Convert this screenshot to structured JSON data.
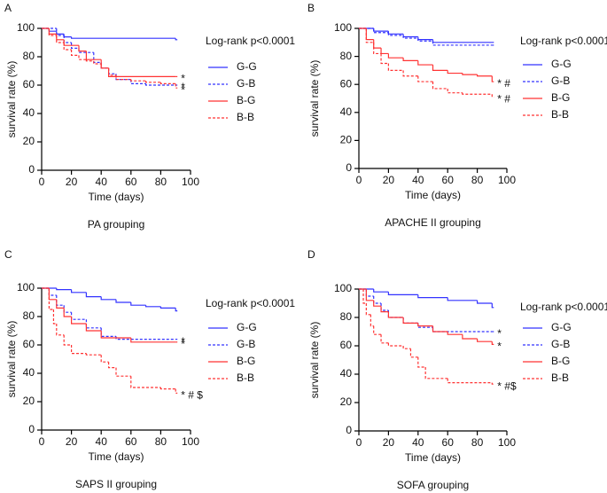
{
  "chart_data": [
    {
      "type": "line",
      "step": true,
      "panel": "A",
      "title": "PA grouping",
      "x_label": "Time (days)",
      "y_label": "survival rate (%)",
      "annotation": "Log-rank p<0.0001",
      "xlim": [
        0,
        100
      ],
      "xticks": [
        0,
        20,
        40,
        60,
        80,
        100
      ],
      "ylim": [
        0,
        100
      ],
      "yticks": [
        0,
        20,
        40,
        60,
        80,
        100
      ],
      "series": [
        {
          "name": "G-G",
          "color": "#3333ff",
          "dash": "solid",
          "x": [
            0,
            5,
            10,
            15,
            20,
            90
          ],
          "values": [
            100,
            98,
            96,
            94,
            93,
            92
          ]
        },
        {
          "name": "G-B",
          "color": "#3333ff",
          "dash": "dashed",
          "x": [
            0,
            10,
            15,
            20,
            25,
            35,
            40,
            45,
            50,
            60,
            70,
            90
          ],
          "values": [
            100,
            95,
            90,
            86,
            83,
            76,
            72,
            68,
            64,
            61,
            60,
            60
          ],
          "end_label": "*"
        },
        {
          "name": "B-G",
          "color": "#ff3333",
          "dash": "solid",
          "x": [
            0,
            5,
            10,
            15,
            25,
            30,
            40,
            45,
            90
          ],
          "values": [
            100,
            96,
            92,
            88,
            84,
            78,
            72,
            66,
            66
          ],
          "end_label": "*"
        },
        {
          "name": "B-B",
          "color": "#ff3333",
          "dash": "dashed",
          "x": [
            0,
            5,
            10,
            15,
            20,
            25,
            30,
            35,
            40,
            45,
            50,
            60,
            70,
            80,
            90
          ],
          "values": [
            100,
            95,
            90,
            85,
            81,
            78,
            77,
            75,
            72,
            67,
            64,
            63,
            62,
            61,
            58
          ],
          "end_label": "*"
        }
      ]
    },
    {
      "type": "line",
      "step": true,
      "panel": "B",
      "title": "APACHE II grouping",
      "x_label": "Time (days)",
      "y_label": "survival rate (%)",
      "annotation": "Log-rank p<0.0001",
      "xlim": [
        0,
        100
      ],
      "xticks": [
        0,
        20,
        40,
        60,
        80,
        100
      ],
      "ylim": [
        0,
        100
      ],
      "yticks": [
        0,
        20,
        40,
        60,
        80,
        100
      ],
      "series": [
        {
          "name": "G-G",
          "color": "#3333ff",
          "dash": "solid",
          "x": [
            0,
            10,
            20,
            30,
            40,
            50,
            90
          ],
          "values": [
            100,
            98,
            96,
            94,
            92,
            90,
            90
          ]
        },
        {
          "name": "G-B",
          "color": "#3333ff",
          "dash": "dashed",
          "x": [
            0,
            10,
            20,
            30,
            40,
            50,
            90
          ],
          "values": [
            100,
            97,
            95,
            93,
            91,
            88,
            88
          ]
        },
        {
          "name": "B-G",
          "color": "#ff3333",
          "dash": "solid",
          "x": [
            0,
            5,
            10,
            15,
            20,
            30,
            40,
            50,
            60,
            70,
            80,
            90
          ],
          "values": [
            100,
            92,
            86,
            82,
            79,
            77,
            74,
            70,
            68,
            67,
            66,
            62
          ],
          "end_label": "* #"
        },
        {
          "name": "B-B",
          "color": "#ff3333",
          "dash": "dashed",
          "x": [
            0,
            5,
            10,
            15,
            20,
            30,
            40,
            50,
            60,
            70,
            90
          ],
          "values": [
            100,
            90,
            82,
            75,
            70,
            66,
            62,
            57,
            54,
            53,
            51
          ],
          "end_label": "* #"
        }
      ]
    },
    {
      "type": "line",
      "step": true,
      "panel": "C",
      "title": "SAPS II grouping",
      "x_label": "Time (days)",
      "y_label": "survival rate (%)",
      "annotation": "Log-rank p<0.0001",
      "xlim": [
        0,
        100
      ],
      "xticks": [
        0,
        20,
        40,
        60,
        80,
        100
      ],
      "ylim": [
        0,
        100
      ],
      "yticks": [
        0,
        20,
        40,
        60,
        80,
        100
      ],
      "series": [
        {
          "name": "G-G",
          "color": "#3333ff",
          "dash": "solid",
          "x": [
            0,
            10,
            20,
            30,
            40,
            50,
            60,
            70,
            80,
            90
          ],
          "values": [
            100,
            99,
            97,
            94,
            92,
            90,
            88,
            87,
            86,
            84
          ]
        },
        {
          "name": "G-B",
          "color": "#3333ff",
          "dash": "dashed",
          "x": [
            0,
            5,
            10,
            15,
            20,
            30,
            40,
            50,
            90
          ],
          "values": [
            100,
            95,
            88,
            83,
            78,
            72,
            66,
            64,
            64
          ],
          "end_label": "*"
        },
        {
          "name": "B-G",
          "color": "#ff3333",
          "dash": "solid",
          "x": [
            0,
            5,
            10,
            15,
            20,
            30,
            40,
            60,
            90
          ],
          "values": [
            100,
            92,
            86,
            80,
            75,
            70,
            65,
            62,
            62
          ],
          "end_label": "*"
        },
        {
          "name": "B-B",
          "color": "#ff3333",
          "dash": "dashed",
          "x": [
            0,
            5,
            8,
            10,
            15,
            20,
            30,
            40,
            45,
            50,
            60,
            80,
            90
          ],
          "values": [
            100,
            85,
            75,
            67,
            60,
            54,
            53,
            48,
            44,
            38,
            30,
            29,
            26
          ],
          "end_label": "* # $"
        }
      ]
    },
    {
      "type": "line",
      "step": true,
      "panel": "D",
      "title": "SOFA grouping",
      "x_label": "Time (days)",
      "y_label": "survival rate (%)",
      "annotation": "Log-rank p<0.0001",
      "xlim": [
        0,
        100
      ],
      "xticks": [
        0,
        20,
        40,
        60,
        80,
        100
      ],
      "ylim": [
        0,
        100
      ],
      "yticks": [
        0,
        20,
        40,
        60,
        80,
        100
      ],
      "series": [
        {
          "name": "G-G",
          "color": "#3333ff",
          "dash": "solid",
          "x": [
            0,
            10,
            20,
            40,
            60,
            80,
            90
          ],
          "values": [
            100,
            98,
            96,
            94,
            92,
            90,
            87
          ]
        },
        {
          "name": "G-B",
          "color": "#3333ff",
          "dash": "dashed",
          "x": [
            0,
            5,
            10,
            15,
            20,
            30,
            40,
            50,
            90
          ],
          "values": [
            100,
            95,
            90,
            85,
            80,
            76,
            73,
            70,
            70
          ],
          "end_label": "*"
        },
        {
          "name": "B-G",
          "color": "#ff3333",
          "dash": "solid",
          "x": [
            0,
            5,
            10,
            15,
            20,
            30,
            40,
            50,
            60,
            70,
            80,
            90
          ],
          "values": [
            100,
            92,
            88,
            84,
            80,
            76,
            74,
            70,
            68,
            65,
            63,
            61
          ],
          "end_label": "*"
        },
        {
          "name": "B-B",
          "color": "#ff3333",
          "dash": "dashed",
          "x": [
            0,
            3,
            5,
            8,
            10,
            15,
            20,
            30,
            35,
            40,
            45,
            60,
            90
          ],
          "values": [
            100,
            90,
            82,
            74,
            68,
            62,
            60,
            58,
            52,
            45,
            37,
            34,
            33
          ],
          "end_label": "* #$"
        }
      ]
    }
  ]
}
